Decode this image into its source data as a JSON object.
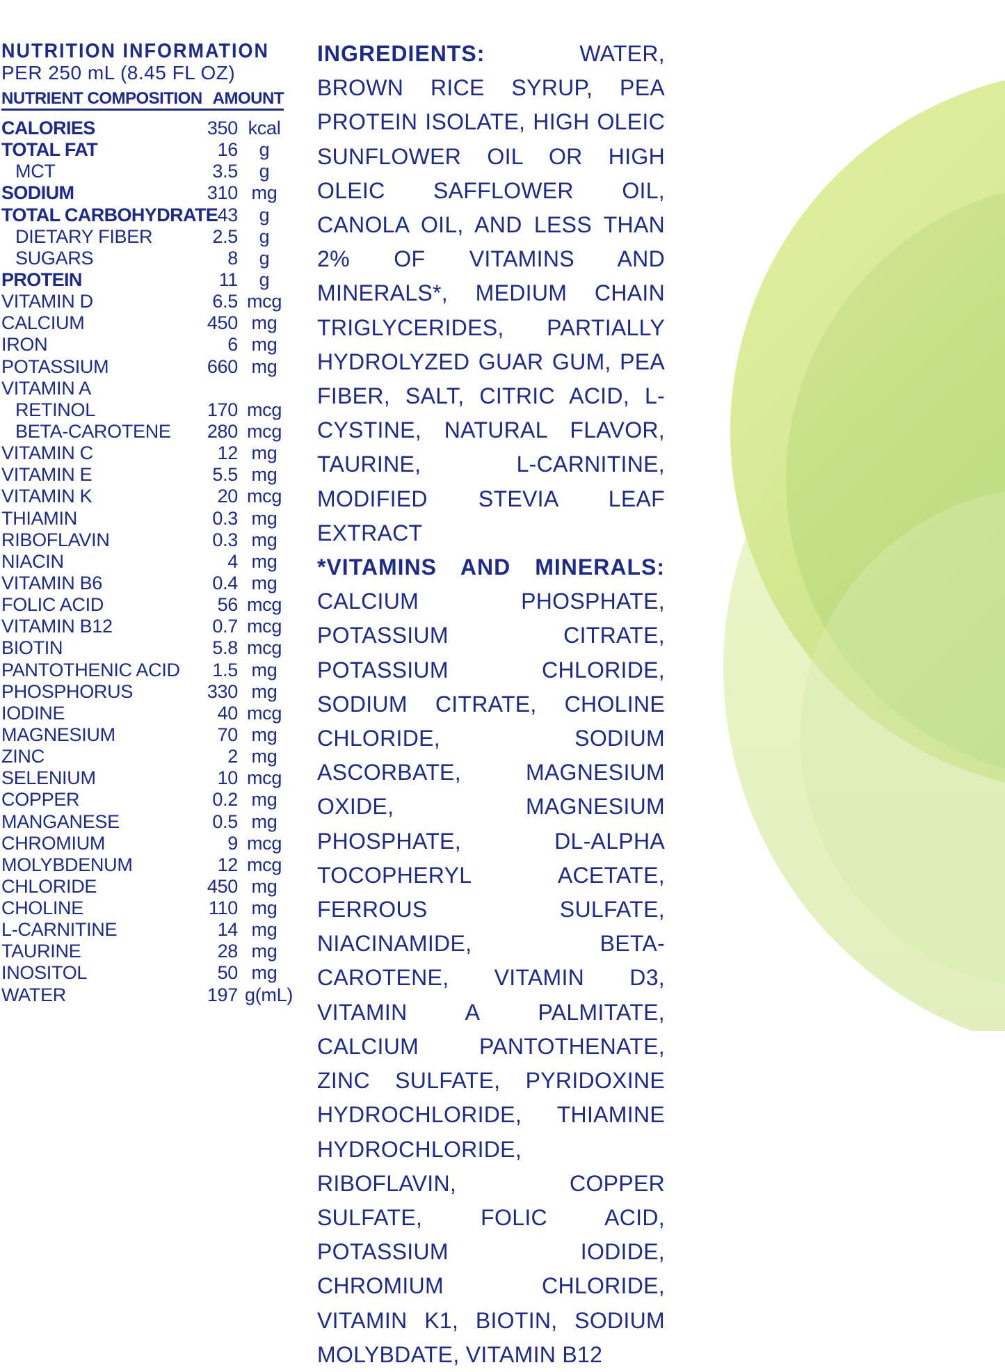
{
  "nutrition": {
    "title": "NUTRITION INFORMATION",
    "serving": "PER 250 mL (8.45 FL OZ)",
    "col_nutrient": "NUTRIENT COMPOSITION",
    "col_amount": "AMOUNT",
    "rows": [
      {
        "name": "CALORIES",
        "amount": "350",
        "unit": "kcal",
        "bold": true,
        "indent": false
      },
      {
        "name": "TOTAL FAT",
        "amount": "16",
        "unit": "g",
        "bold": true,
        "indent": false
      },
      {
        "name": "MCT",
        "amount": "3.5",
        "unit": "g",
        "bold": false,
        "indent": true
      },
      {
        "name": "SODIUM",
        "amount": "310",
        "unit": "mg",
        "bold": true,
        "indent": false
      },
      {
        "name": "TOTAL CARBOHYDRATE",
        "amount": "43",
        "unit": "g",
        "bold": true,
        "indent": false
      },
      {
        "name": "DIETARY FIBER",
        "amount": "2.5",
        "unit": "g",
        "bold": false,
        "indent": true
      },
      {
        "name": "SUGARS",
        "amount": "8",
        "unit": "g",
        "bold": false,
        "indent": true
      },
      {
        "name": "PROTEIN",
        "amount": "11",
        "unit": "g",
        "bold": true,
        "indent": false
      },
      {
        "name": "VITAMIN D",
        "amount": "6.5",
        "unit": "mcg",
        "bold": false,
        "indent": false
      },
      {
        "name": "CALCIUM",
        "amount": "450",
        "unit": "mg",
        "bold": false,
        "indent": false
      },
      {
        "name": "IRON",
        "amount": "6",
        "unit": "mg",
        "bold": false,
        "indent": false
      },
      {
        "name": "POTASSIUM",
        "amount": "660",
        "unit": "mg",
        "bold": false,
        "indent": false
      },
      {
        "name": "VITAMIN A",
        "amount": "",
        "unit": "",
        "bold": false,
        "indent": false
      },
      {
        "name": "RETINOL",
        "amount": "170",
        "unit": "mcg",
        "bold": false,
        "indent": true
      },
      {
        "name": "BETA-CAROTENE",
        "amount": "280",
        "unit": "mcg",
        "bold": false,
        "indent": true
      },
      {
        "name": "VITAMIN C",
        "amount": "12",
        "unit": "mg",
        "bold": false,
        "indent": false
      },
      {
        "name": "VITAMIN E",
        "amount": "5.5",
        "unit": "mg",
        "bold": false,
        "indent": false
      },
      {
        "name": "VITAMIN K",
        "amount": "20",
        "unit": "mcg",
        "bold": false,
        "indent": false
      },
      {
        "name": "THIAMIN",
        "amount": "0.3",
        "unit": "mg",
        "bold": false,
        "indent": false
      },
      {
        "name": "RIBOFLAVIN",
        "amount": "0.3",
        "unit": "mg",
        "bold": false,
        "indent": false
      },
      {
        "name": "NIACIN",
        "amount": "4",
        "unit": "mg",
        "bold": false,
        "indent": false
      },
      {
        "name": "VITAMIN B6",
        "amount": "0.4",
        "unit": "mg",
        "bold": false,
        "indent": false
      },
      {
        "name": "FOLIC ACID",
        "amount": "56",
        "unit": "mcg",
        "bold": false,
        "indent": false
      },
      {
        "name": "VITAMIN B12",
        "amount": "0.7",
        "unit": "mcg",
        "bold": false,
        "indent": false
      },
      {
        "name": "BIOTIN",
        "amount": "5.8",
        "unit": "mcg",
        "bold": false,
        "indent": false
      },
      {
        "name": "PANTOTHENIC ACID",
        "amount": "1.5",
        "unit": "mg",
        "bold": false,
        "indent": false
      },
      {
        "name": "PHOSPHORUS",
        "amount": "330",
        "unit": "mg",
        "bold": false,
        "indent": false
      },
      {
        "name": "IODINE",
        "amount": "40",
        "unit": "mcg",
        "bold": false,
        "indent": false
      },
      {
        "name": "MAGNESIUM",
        "amount": "70",
        "unit": "mg",
        "bold": false,
        "indent": false
      },
      {
        "name": "ZINC",
        "amount": "2",
        "unit": "mg",
        "bold": false,
        "indent": false
      },
      {
        "name": "SELENIUM",
        "amount": "10",
        "unit": "mcg",
        "bold": false,
        "indent": false
      },
      {
        "name": "COPPER",
        "amount": "0.2",
        "unit": "mg",
        "bold": false,
        "indent": false
      },
      {
        "name": "MANGANESE",
        "amount": "0.5",
        "unit": "mg",
        "bold": false,
        "indent": false
      },
      {
        "name": "CHROMIUM",
        "amount": "9",
        "unit": "mcg",
        "bold": false,
        "indent": false
      },
      {
        "name": "MOLYBDENUM",
        "amount": "12",
        "unit": "mcg",
        "bold": false,
        "indent": false
      },
      {
        "name": "CHLORIDE",
        "amount": "450",
        "unit": "mg",
        "bold": false,
        "indent": false
      },
      {
        "name": "CHOLINE",
        "amount": "110",
        "unit": "mg",
        "bold": false,
        "indent": false
      },
      {
        "name": "L-CARNITINE",
        "amount": "14",
        "unit": "mg",
        "bold": false,
        "indent": false
      },
      {
        "name": "TAURINE",
        "amount": "28",
        "unit": "mg",
        "bold": false,
        "indent": false
      },
      {
        "name": "INOSITOL",
        "amount": "50",
        "unit": "mg",
        "bold": false,
        "indent": false
      },
      {
        "name": "WATER",
        "amount": "197",
        "unit": "g(mL)",
        "bold": false,
        "indent": false
      }
    ]
  },
  "ingredients": {
    "label": "INGREDIENTS:",
    "text": "WATER, BROWN RICE SYRUP, PEA PROTEIN ISOLATE, HIGH OLEIC SUNFLOWER OIL OR HIGH OLEIC SAFFLOWER OIL, CANOLA OIL, AND LESS THAN 2% OF VITAMINS AND MINERALS*, MEDIUM CHAIN TRIGLYCERIDES, PARTIALLY HYDROLYZED GUAR GUM, PEA FIBER, SALT, CITRIC ACID, L-CYSTINE, NATURAL FLAVOR, TAURINE, L-CARNITINE, MODIFIED STEVIA LEAF EXTRACT",
    "vm_label": "*VITAMINS AND MINERALS:",
    "vm_text": "CALCIUM PHOSPHATE, POTASSIUM CITRATE, POTASSIUM CHLORIDE, SODIUM CITRATE, CHOLINE CHLORIDE, SODIUM ASCORBATE, MAGNESIUM OXIDE, MAGNESIUM PHOSPHATE, DL-ALPHA TOCOPHERYL ACETATE, FERROUS SULFATE, NIACINAMIDE, BETA-CAROTENE, VITAMIN D3, VITAMIN A PALMITATE, CALCIUM PANTOTHENATE, ZINC SULFATE, PYRIDOXINE HYDROCHLORIDE, THIAMINE HYDROCHLORIDE, RIBOFLAVIN, COPPER SULFATE, FOLIC ACID, POTASSIUM IODIDE, CHROMIUM CHLORIDE, VITAMIN K1, BIOTIN, SODIUM MOLYBDATE, VITAMIN B12"
  },
  "colors": {
    "text": "#1c2a8c",
    "circle_light": "#e6f0b4",
    "circle_mid": "#c8e08a",
    "circle_dark": "#9fcc6a"
  }
}
